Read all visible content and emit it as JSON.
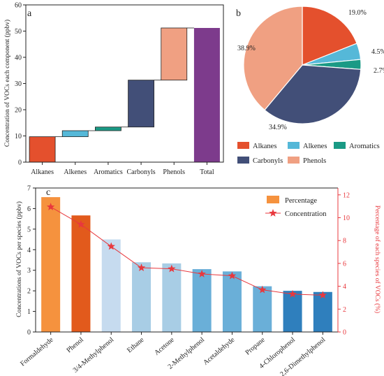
{
  "colors": {
    "alkanes": "#e4502d",
    "alkenes": "#55b8d8",
    "aromatics": "#1a9a85",
    "carbonyls": "#424f78",
    "phenols": "#f0a082",
    "total": "#7d3b8c",
    "bar_percentage": "#f5923e",
    "bar_phenol": "#e25a1c",
    "line_concentration": "#e8383d",
    "blues": [
      "#c6dbef",
      "#a8cde5",
      "#a8cde5",
      "#6aafd8",
      "#6aafd8",
      "#6aafd8",
      "#2f7fbd",
      "#2f7fbd"
    ],
    "right_axis": "#e8383d"
  },
  "chart_data": [
    {
      "panel": "a",
      "type": "bar",
      "subtype": "waterfall",
      "categories": [
        "Alkanes",
        "Alkenes",
        "Aromatics",
        "Carbonyls",
        "Phenols",
        "Total"
      ],
      "values": [
        9.7,
        2.3,
        1.4,
        17.9,
        19.9,
        51.2
      ],
      "ylabel": "Concentration of VOCs each component (ppbv)",
      "ylim": [
        0,
        60
      ],
      "yticks": [
        0,
        10,
        20,
        30,
        40,
        50,
        60
      ]
    },
    {
      "panel": "b",
      "type": "pie",
      "labels": [
        "Alkanes",
        "Alkenes",
        "Aromatics",
        "Carbonyls",
        "Phenols"
      ],
      "values": [
        19.0,
        4.5,
        2.7,
        34.9,
        38.9
      ],
      "value_labels": [
        "19.0%",
        "4.5%",
        "2.7%",
        "34.9%",
        "38.9%"
      ],
      "legend": "bottom"
    },
    {
      "panel": "c",
      "type": "bar",
      "categories": [
        "Formaldehyde",
        "Phenol",
        "3/4-Methylphenol",
        "Ethane",
        "Acetone",
        "2-Methylphenol",
        "Acetaldehyde",
        "Propane",
        "4-Chlorophenol",
        "2,6-Dimethylphenol"
      ],
      "series": [
        {
          "name": "Percentage",
          "values": [
            11.8,
            10.2,
            8.1,
            6.1,
            6.0,
            5.5,
            5.3,
            4.0,
            3.6,
            3.5
          ],
          "axis": "right"
        },
        {
          "name": "Concentration",
          "type": "line",
          "values": [
            6.08,
            5.23,
            4.16,
            3.12,
            3.07,
            2.82,
            2.73,
            2.05,
            1.84,
            1.79
          ],
          "axis": "left"
        }
      ],
      "ylabel": "Concentrations of VOCs per species (ppbv)",
      "ylim": [
        0,
        7
      ],
      "yticks": [
        0,
        1,
        2,
        3,
        4,
        5,
        6,
        7
      ],
      "y2label": "Percentage of each species of VOCs (%)",
      "y2lim": [
        0,
        12.6
      ],
      "y2ticks": [
        0,
        2,
        4,
        6,
        8,
        10,
        12
      ],
      "legend": "top-right"
    }
  ]
}
